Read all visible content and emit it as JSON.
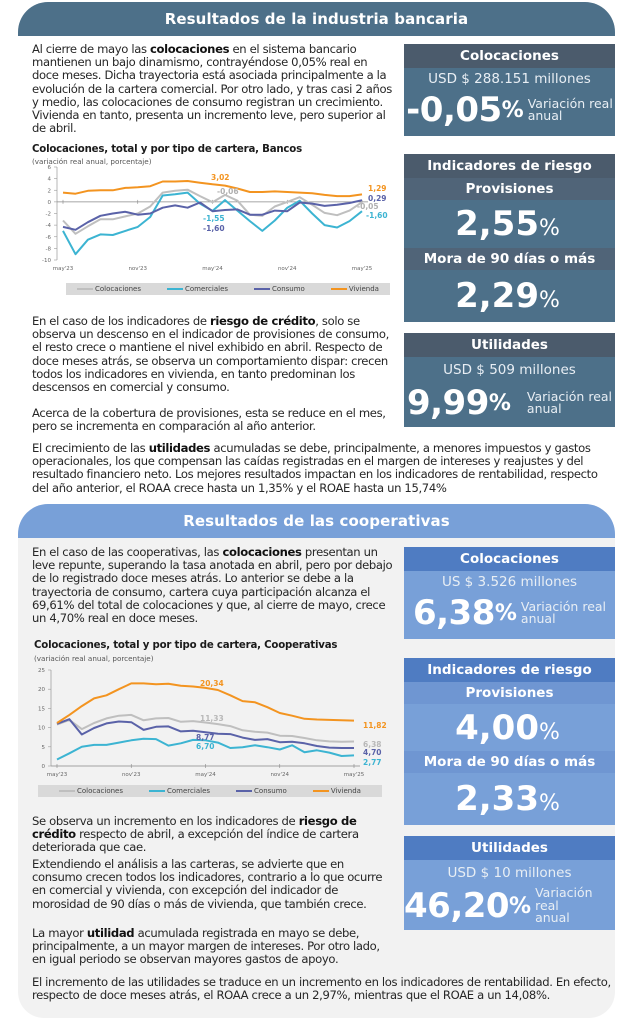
{
  "bank": {
    "header": "Resultados de la industria bancaria",
    "intro": {
      "pre": "Al cierre de mayo las ",
      "bold": "colocaciones",
      "post": " en el sistema bancario mantienen un bajo dinamismo, contrayéndose 0,05% real en doce meses. Dicha trayectoria está asociada principalmente a la evolución de la cartera comercial. Por otro lado, y tras casi 2 años y medio, las colocaciones de consumo registran un crecimiento. Vivienda en tanto, presenta un incremento leve, pero superior al de abril."
    },
    "risk_text": {
      "pre": "En el caso de los indicadores de ",
      "bold": "riesgo de crédito",
      "post": ", solo se observa un descenso en el indicador de provisiones de consumo, el resto crece o mantiene el nivel exhibido en abril. Respecto de doce meses atrás, se observa un comportamiento dispar: crecen todos los indicadores en vivienda, en tanto predominan los descensos en comercial y consumo."
    },
    "coverage_text": "Acerca de la cobertura de provisiones, esta se reduce en el mes, pero se incrementa en comparación al año anterior.",
    "profit_text": {
      "pre": "El crecimiento de las ",
      "bold": "utilidades",
      "post": " acumuladas se debe, principalmente, a menores impuestos y gastos operacionales, los que compensan las caídas registradas en el margen de intereses y reajustes y del resultado financiero neto. Los mejores resultados impactan en los indicadores de rentabilidad, respecto del año anterior, el ROAA crece hasta un 1,35% y el ROAE hasta un 15,74%"
    },
    "kpi_colocaciones": {
      "title": "Colocaciones",
      "amount": "USD $ 288.151 millones",
      "value": "-0,05",
      "pct": "%",
      "label1": "Variación real",
      "label2": "anual"
    },
    "kpi_riesgo": {
      "title": "Indicadores de riesgo",
      "sub1": "Provisiones",
      "val1": "2,55",
      "sub2": "Mora de 90 días o más",
      "val2": "2,29",
      "pct": "%"
    },
    "kpi_utilidades": {
      "title": "Utilidades",
      "amount": "USD $ 509 millones",
      "value": "9,99",
      "pct": "%",
      "label1": "Variación real",
      "label2": "anual"
    }
  },
  "coop": {
    "header": "Resultados de las cooperativas",
    "intro": {
      "pre": "En el caso de las cooperativas, las ",
      "bold": "colocaciones",
      "post": " presentan un leve repunte, superando la tasa anotada en abril, pero por debajo de lo registrado doce meses atrás. Lo anterior se debe a la trayectoria de consumo, cartera cuya participación alcanza el 69,61% del total de colocaciones y que, al cierre de mayo, crece un 4,70% real en doce meses."
    },
    "risk_text": {
      "pre": "Se observa un incremento en los indicadores de ",
      "bold": "riesgo de crédito",
      "post": " respecto de abril, a excepción del índice de cartera deteriorada que cae."
    },
    "portfolio_text": "Extendiendo el análisis a las carteras, se advierte que en consumo crecen todos los indicadores, contrario a lo que ocurre en comercial y vivienda, con excepción del indicador de morosidad de 90 días o más de vivienda, que también crece.",
    "profit_text": {
      "pre": "La mayor ",
      "bold": "utilidad",
      "post": " acumulada registrada en mayo se debe, principalmente, a un mayor margen de intereses. Por otro lado, en igual periodo se observan mayores gastos de apoyo."
    },
    "closing_text": "El incremento de las utilidades se traduce en un incremento en los indicadores de rentabilidad. En efecto, respecto de doce meses atrás, el ROAA crece a un 2,97%, mientras que el ROAE a un 14,08%.",
    "kpi_colocaciones": {
      "title": "Colocaciones",
      "amount": "US $ 3.526 millones",
      "value": "6,38",
      "pct": "%",
      "label1": "Variación real",
      "label2": "anual"
    },
    "kpi_riesgo": {
      "title": "Indicadores de riesgo",
      "sub1": "Provisiones",
      "val1": "4,00",
      "sub2": "Mora de 90 días o más",
      "val2": "2,33",
      "pct": "%"
    },
    "kpi_utilidades": {
      "title": "Utilidades",
      "amount": "USD $ 10 millones",
      "value": "46,20",
      "pct": "%",
      "label1": "Variación real",
      "label2": "anual"
    }
  },
  "chart_data": [
    {
      "type": "line",
      "title": "Colocaciones, total y por tipo de cartera, Bancos",
      "subtitle": "(variación real anual, porcentaje)",
      "xlabel": "",
      "ylabel": "",
      "ylim": [
        -10,
        6
      ],
      "yticks": [
        6,
        4,
        2,
        0,
        -2,
        -4,
        -6,
        -8,
        -10
      ],
      "xtick_labels": [
        "may'23",
        "nov'23",
        "may'24",
        "nov'24",
        "may'25"
      ],
      "xtick_indices": [
        0,
        6,
        12,
        18,
        24
      ],
      "legend": "bottom",
      "x": [
        "may'23",
        "jun'23",
        "jul'23",
        "ago'23",
        "sep'23",
        "oct'23",
        "nov'23",
        "dic'23",
        "ene'24",
        "feb'24",
        "mar'24",
        "abr'24",
        "may'24",
        "jun'24",
        "jul'24",
        "ago'24",
        "sep'24",
        "oct'24",
        "nov'24",
        "dic'24",
        "ene'25",
        "feb'25",
        "mar'25",
        "abr'25",
        "may'25"
      ],
      "series": [
        {
          "name": "Colocaciones",
          "color": "#bfbfbf",
          "values": [
            -3.2,
            -5.5,
            -4.2,
            -3.0,
            -3.0,
            -2.5,
            -2.0,
            -0.8,
            1.6,
            1.9,
            2.1,
            1.0,
            -0.06,
            1.2,
            0.2,
            -2.2,
            -2.4,
            -0.8,
            0.0,
            0.8,
            -0.5,
            -1.9,
            -2.3,
            -1.5,
            -0.05
          ]
        },
        {
          "name": "Comerciales",
          "color": "#3cb4d2",
          "values": [
            -5.0,
            -9.0,
            -6.5,
            -5.6,
            -5.7,
            -5.0,
            -4.3,
            -2.6,
            1.1,
            1.3,
            1.6,
            -0.3,
            -1.55,
            0.3,
            -1.5,
            -3.3,
            -5.0,
            -3.2,
            -1.0,
            0.2,
            -2.0,
            -4.0,
            -4.4,
            -3.3,
            -1.6
          ]
        },
        {
          "name": "Consumo",
          "color": "#5a62a8",
          "values": [
            -4.3,
            -4.8,
            -3.5,
            -2.4,
            -2.0,
            -1.7,
            -2.2,
            -2.0,
            -1.0,
            -0.6,
            -1.0,
            -0.1,
            -1.6,
            -1.4,
            -1.3,
            -2.2,
            -2.2,
            -1.5,
            -1.6,
            -0.1,
            -0.3,
            -0.7,
            -0.5,
            -0.2,
            0.29
          ]
        },
        {
          "name": "Vivienda",
          "color": "#f39420",
          "values": [
            1.6,
            1.4,
            1.9,
            2.0,
            2.0,
            2.4,
            2.5,
            2.7,
            3.5,
            3.5,
            3.6,
            3.3,
            3.02,
            2.8,
            2.3,
            1.7,
            1.7,
            1.8,
            1.7,
            1.6,
            1.5,
            1.2,
            1.0,
            1.0,
            1.29
          ]
        }
      ],
      "annotations": [
        "3,02",
        "-0,06",
        "-1,55",
        "-1,60",
        "1,29",
        "0,29",
        "-0,05",
        "-1,60"
      ]
    },
    {
      "type": "line",
      "title": "Colocaciones, total y por tipo de cartera, Cooperativas",
      "subtitle": "(variación real anual, porcentaje)",
      "xlabel": "",
      "ylabel": "",
      "ylim": [
        0,
        25
      ],
      "yticks": [
        25,
        20,
        15,
        10,
        5,
        0
      ],
      "xtick_labels": [
        "may'23",
        "nov'23",
        "may'24",
        "nov'24",
        "may'25"
      ],
      "xtick_indices": [
        0,
        6,
        12,
        18,
        24
      ],
      "legend": "bottom",
      "x": [
        "may'23",
        "jun'23",
        "jul'23",
        "ago'23",
        "sep'23",
        "oct'23",
        "nov'23",
        "dic'23",
        "ene'24",
        "feb'24",
        "mar'24",
        "abr'24",
        "may'24",
        "jun'24",
        "jul'24",
        "ago'24",
        "sep'24",
        "oct'24",
        "nov'24",
        "dic'24",
        "ene'25",
        "feb'25",
        "mar'25",
        "abr'25",
        "may'25"
      ],
      "series": [
        {
          "name": "Colocaciones",
          "color": "#bfbfbf",
          "values": [
            10.8,
            12.0,
            9.6,
            11.2,
            12.4,
            13.1,
            13.3,
            11.9,
            12.4,
            12.5,
            11.5,
            11.7,
            11.33,
            10.9,
            10.4,
            9.3,
            8.9,
            8.7,
            7.9,
            7.8,
            7.3,
            6.7,
            6.4,
            6.3,
            6.38
          ]
        },
        {
          "name": "Comerciales",
          "color": "#3cb4d2",
          "values": [
            1.7,
            3.3,
            5.0,
            5.5,
            5.5,
            6.1,
            6.7,
            7.1,
            7.0,
            5.3,
            5.9,
            6.8,
            6.7,
            6.1,
            4.7,
            4.9,
            5.4,
            4.9,
            4.3,
            5.4,
            3.6,
            4.1,
            3.5,
            2.6,
            2.77
          ]
        },
        {
          "name": "Consumo",
          "color": "#5a62a8",
          "values": [
            11.0,
            12.2,
            8.2,
            9.9,
            11.1,
            11.6,
            11.4,
            9.4,
            10.2,
            10.3,
            9.0,
            9.2,
            8.77,
            8.4,
            8.3,
            7.4,
            6.8,
            7.0,
            6.2,
            6.3,
            5.9,
            5.2,
            4.8,
            4.7,
            4.7
          ]
        },
        {
          "name": "Vivienda",
          "color": "#f39420",
          "values": [
            11.2,
            13.3,
            15.6,
            17.6,
            18.4,
            20.0,
            21.5,
            21.5,
            21.3,
            21.4,
            20.9,
            20.7,
            20.34,
            19.8,
            18.4,
            16.9,
            16.6,
            15.3,
            13.8,
            13.1,
            12.3,
            12.1,
            12.0,
            11.9,
            11.82
          ]
        }
      ],
      "annotations": [
        "20,34",
        "11,33",
        "8,77",
        "6,70",
        "11,82",
        "6,38",
        "4,70",
        "2,77"
      ]
    }
  ]
}
